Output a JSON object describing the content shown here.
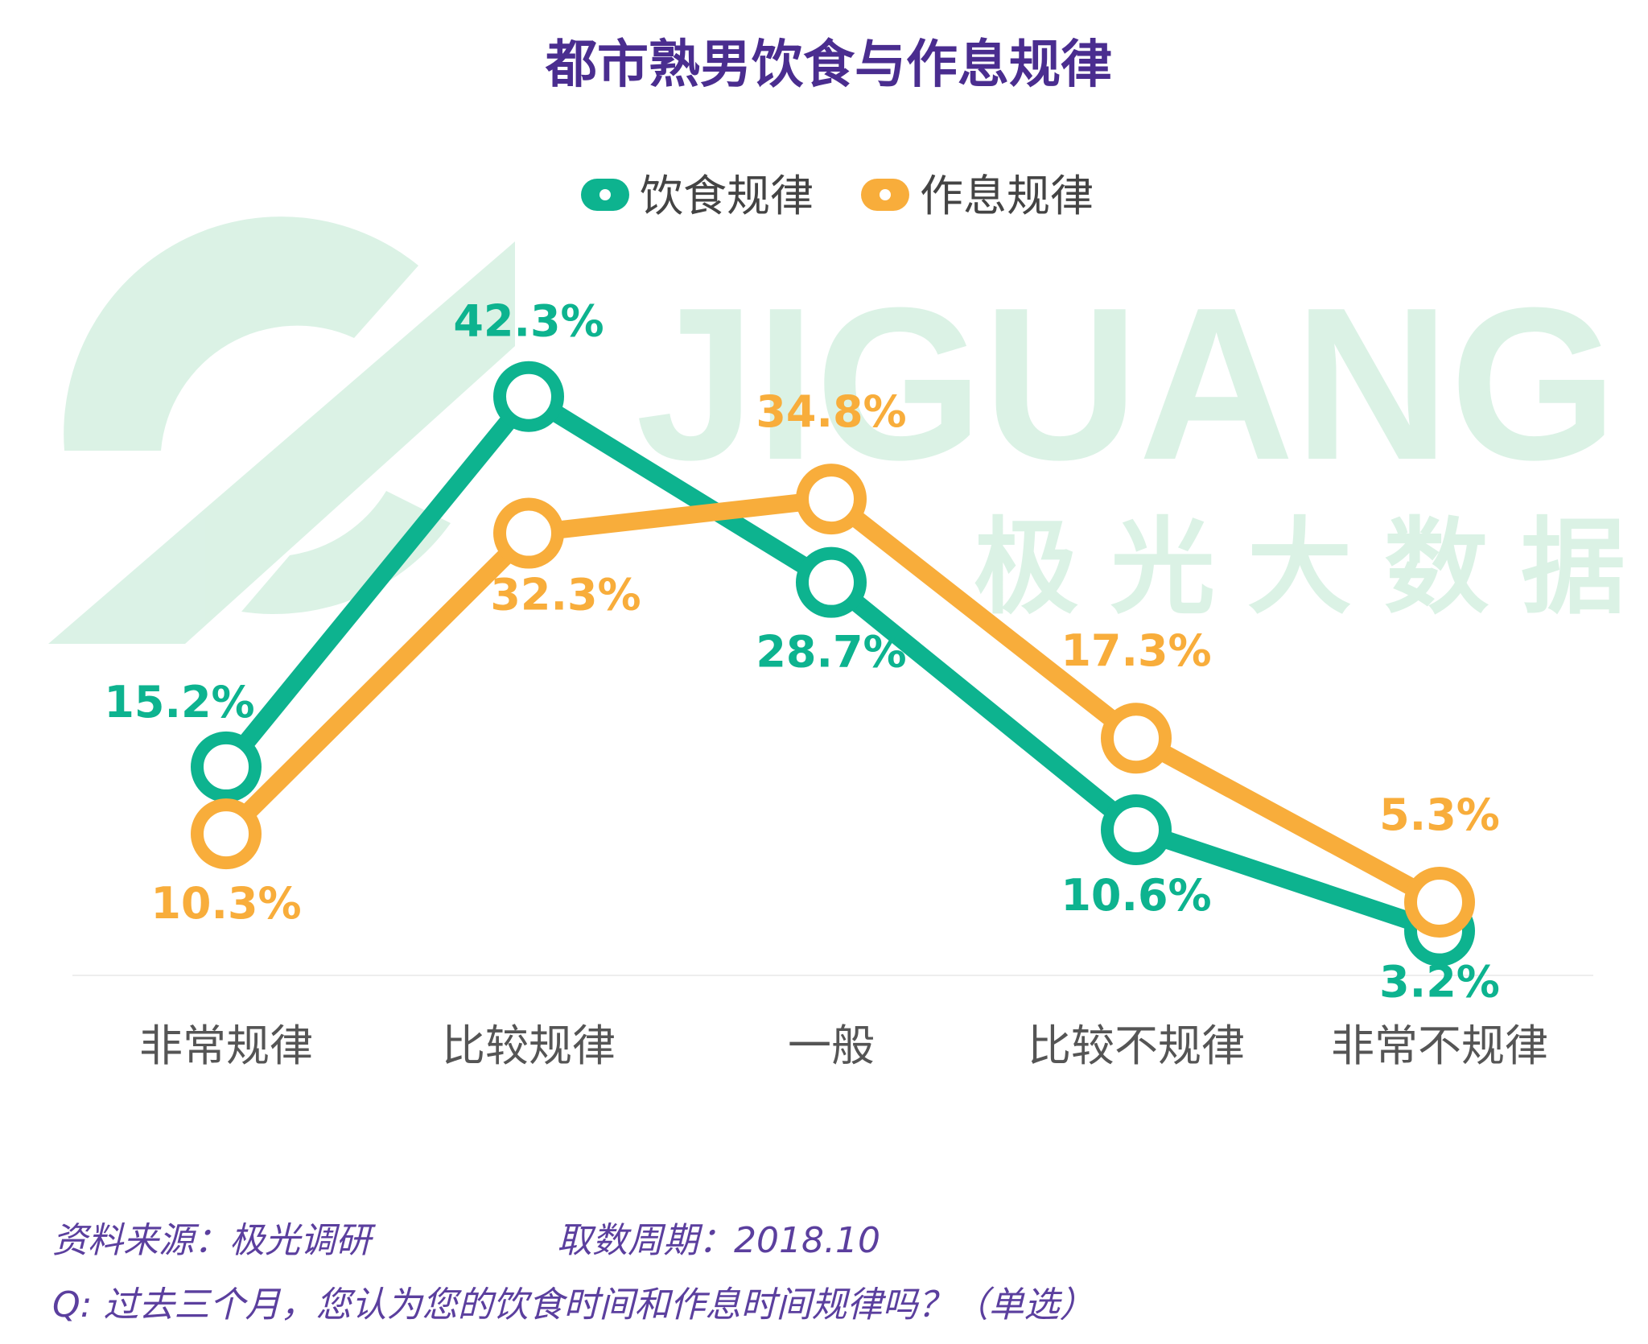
{
  "title": "都市熟男饮食与作息规律",
  "watermark": {
    "logo_text": "JIGUANG",
    "logo_sub": "极光大数据"
  },
  "colors": {
    "diet": "#0db38f",
    "sleep": "#f8ad3b",
    "title": "#4a2d8f"
  },
  "chart_data": {
    "type": "line",
    "title": "都市熟男饮食与作息规律",
    "categories": [
      "非常规律",
      "比较规律",
      "一般",
      "比较不规律",
      "非常不规律"
    ],
    "series": [
      {
        "name": "饮食规律",
        "values": [
          15.2,
          42.3,
          28.7,
          10.6,
          3.2
        ],
        "labels": [
          "15.2%",
          "42.3%",
          "28.7%",
          "10.6%",
          "3.2%"
        ]
      },
      {
        "name": "作息规律",
        "values": [
          10.3,
          32.3,
          34.8,
          17.3,
          5.3
        ],
        "labels": [
          "10.3%",
          "32.3%",
          "34.8%",
          "17.3%",
          "5.3%"
        ]
      }
    ],
    "legend_position": "top",
    "grid": false,
    "ylim": [
      0,
      45
    ]
  },
  "footer": {
    "source": "资料来源：极光调研",
    "period": "取数周期：2018.10",
    "question": "Q: 过去三个月，您认为您的饮食时间和作息时间规律吗？（单选）"
  }
}
